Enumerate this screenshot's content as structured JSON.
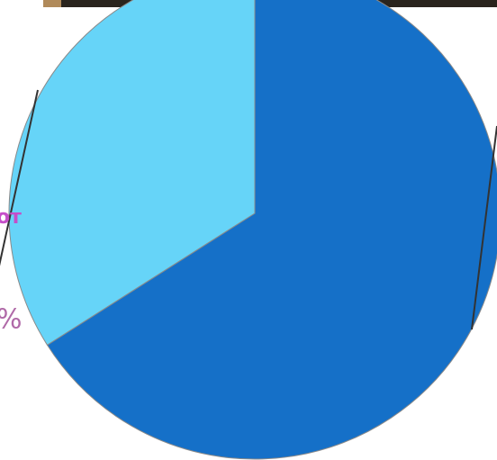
{
  "chart_data": {
    "type": "pie",
    "categories": [
      null,
      null
    ],
    "values": [
      66,
      34
    ],
    "colors": [
      "#1570c8",
      "#66d4f8"
    ],
    "start": "top",
    "direction": "clockwise",
    "annotations": [
      "от",
      "%"
    ]
  }
}
